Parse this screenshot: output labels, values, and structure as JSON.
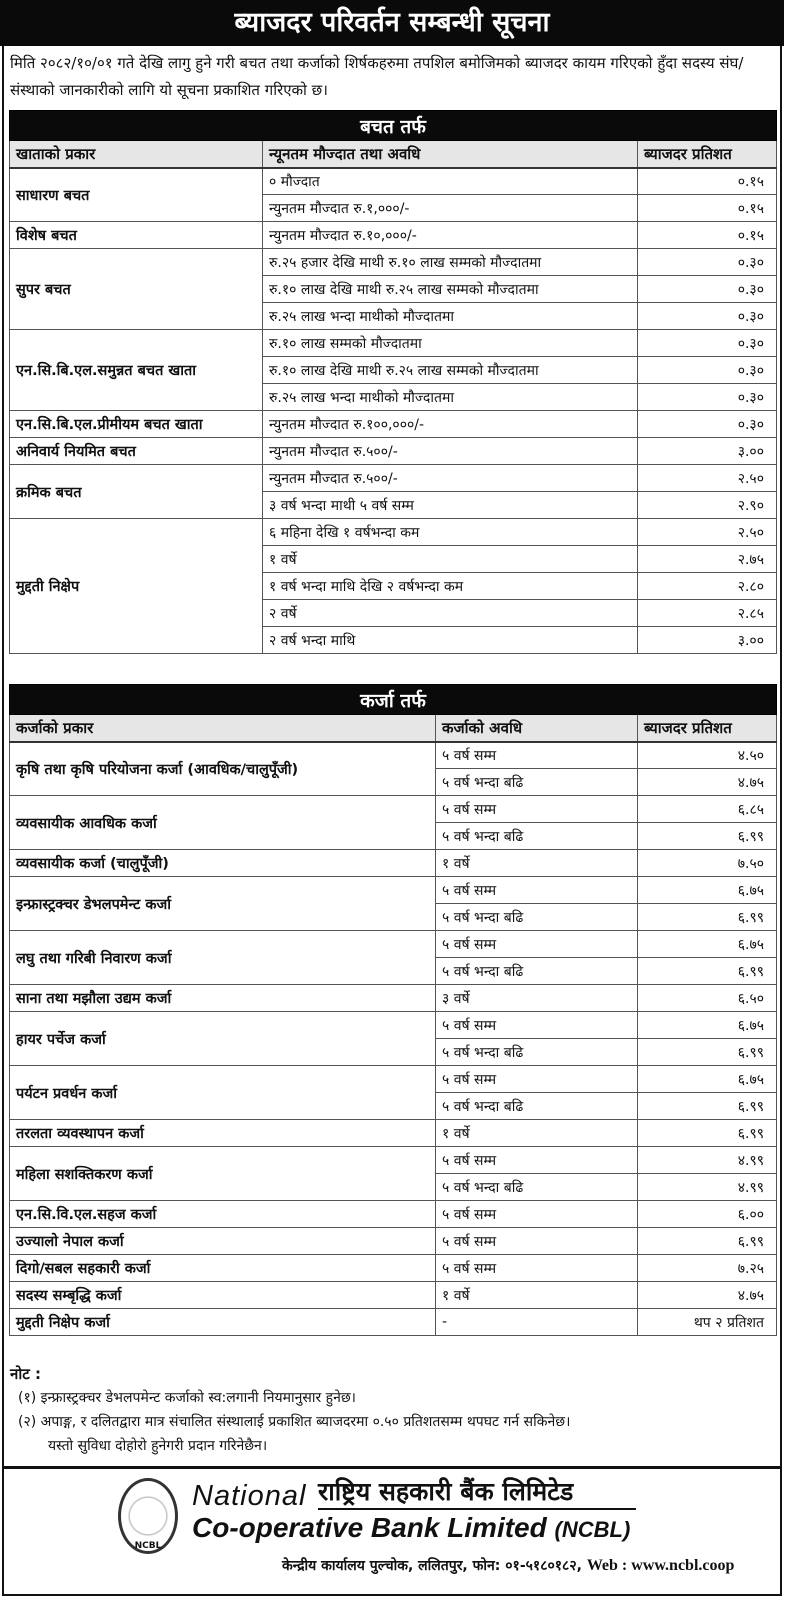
{
  "title": "ब्याजदर परिवर्तन सम्बन्धी सूचना",
  "intro": "मिति २०८२/१०/०१ गते देखि लागु हुने गरी बचत तथा कर्जाको शिर्षकहरुमा तपशिल बमोजिमको ब्याजदर कायम गरिएको हुँदा सदस्य संघ/संस्थाको जानकारीको लागि यो सूचना प्रकाशित गरिएको छ।",
  "savings": {
    "heading": "बचत तर्फ",
    "columns": [
      "खाताको प्रकार",
      "न्यूनतम मौज्दात तथा अवधि",
      "ब्याजदर प्रतिशत"
    ],
    "groups": [
      {
        "type": "साधारण बचत",
        "rows": [
          [
            "० मौज्दात",
            "०.१५"
          ],
          [
            "न्युनतम मौज्दात रु.१,०००/-",
            "०.१५"
          ]
        ]
      },
      {
        "type": "विशेष बचत",
        "rows": [
          [
            "न्युनतम मौज्दात रु.१०,०००/-",
            "०.१५"
          ]
        ]
      },
      {
        "type": "सुपर बचत",
        "rows": [
          [
            "रु.२५ हजार देखि माथी रु.१० लाख सम्मको मौज्दातमा",
            "०.३०"
          ],
          [
            "रु.१० लाख देखि माथी रु.२५ लाख सम्मको मौज्दातमा",
            "०.३०"
          ],
          [
            "रु.२५ लाख भन्दा माथीको मौज्दातमा",
            "०.३०"
          ]
        ]
      },
      {
        "type": "एन.सि.बि.एल.समुन्नत बचत खाता",
        "rows": [
          [
            "रु.१० लाख सम्मको मौज्दातमा",
            "०.३०"
          ],
          [
            "रु.१० लाख देखि माथी रु.२५ लाख सम्मको मौज्दातमा",
            "०.३०"
          ],
          [
            "रु.२५ लाख भन्दा माथीको मौज्दातमा",
            "०.३०"
          ]
        ]
      },
      {
        "type": "एन.सि.बि.एल.प्रीमीयम बचत खाता",
        "rows": [
          [
            "न्युनतम मौज्दात रु.१००,०००/-",
            "०.३०"
          ]
        ]
      },
      {
        "type": "अनिवार्य नियमित बचत",
        "rows": [
          [
            "न्युनतम मौज्दात रु.५००/-",
            "३.००"
          ]
        ]
      },
      {
        "type": "क्रमिक बचत",
        "rows": [
          [
            "न्युनतम मौज्दात रु.५००/-",
            "२.५०"
          ],
          [
            "३ वर्ष भन्दा माथी ५ वर्ष सम्म",
            "२.९०"
          ]
        ]
      },
      {
        "type": "मुद्दती  निक्षेप",
        "rows": [
          [
            "६ महिना देखि १ वर्षभन्दा कम",
            "२.५०"
          ],
          [
            "१ वर्षे",
            "२.७५"
          ],
          [
            "१ वर्ष भन्दा माथि देखि २ वर्षभन्दा कम",
            "२.८०"
          ],
          [
            "२ वर्षे",
            "२.८५"
          ],
          [
            "२ वर्ष भन्दा माथि",
            "३.००"
          ]
        ]
      }
    ]
  },
  "loans": {
    "heading": "कर्जा तर्फ",
    "columns": [
      "कर्जाको प्रकार",
      "कर्जाको अवधि",
      "ब्याजदर प्रतिशत"
    ],
    "groups": [
      {
        "type": "कृषि तथा कृषि परियोजना कर्जा  (आवधिक/चालुपूँजी)",
        "rows": [
          [
            "५ वर्ष सम्म",
            "४.५०"
          ],
          [
            "५ वर्ष भन्दा बढि",
            "४.७५"
          ]
        ]
      },
      {
        "type": "व्यवसायीक आवधिक कर्जा",
        "rows": [
          [
            "५ वर्ष सम्म",
            "६.८५"
          ],
          [
            "५ वर्ष भन्दा बढि",
            "६.९९"
          ]
        ]
      },
      {
        "type": "व्यवसायीक कर्जा (चालुपूँजी)",
        "rows": [
          [
            "१ वर्षे",
            "७.५०"
          ]
        ]
      },
      {
        "type": "इन्फ्रास्ट्रक्चर डेभलपमेन्ट कर्जा",
        "rows": [
          [
            "५ वर्ष सम्म",
            "६.७५"
          ],
          [
            "५ वर्ष भन्दा बढि",
            "६.९९"
          ]
        ]
      },
      {
        "type": "लघु तथा गरिबी निवारण कर्जा",
        "rows": [
          [
            "५ वर्ष सम्म",
            "६.७५"
          ],
          [
            "५ वर्ष भन्दा बढि",
            "६.९९"
          ]
        ]
      },
      {
        "type": "साना तथा मझौला उद्यम कर्जा",
        "rows": [
          [
            "३ वर्षे",
            "६.५०"
          ]
        ]
      },
      {
        "type": "हायर पर्चेज कर्जा",
        "rows": [
          [
            "५ वर्ष सम्म",
            "६.७५"
          ],
          [
            "५ वर्ष भन्दा बढि",
            "६.९९"
          ]
        ]
      },
      {
        "type": "पर्यटन प्रवर्धन कर्जा",
        "rows": [
          [
            "५ वर्ष सम्म",
            "६.७५"
          ],
          [
            "५ वर्ष भन्दा बढि",
            "६.९९"
          ]
        ]
      },
      {
        "type": "तरलता व्यवस्थापन कर्जा",
        "rows": [
          [
            "१ वर्षे",
            "६.९९"
          ]
        ]
      },
      {
        "type": "महिला सशक्तिकरण कर्जा",
        "rows": [
          [
            "५ वर्ष सम्म",
            "४.९९"
          ],
          [
            "५ वर्ष भन्दा बढि",
            "४.९९"
          ]
        ]
      },
      {
        "type": "एन.सि.वि.एल.सहज कर्जा",
        "rows": [
          [
            "५ वर्ष सम्म",
            "६.००"
          ]
        ]
      },
      {
        "type": "उज्यालो नेपाल कर्जा",
        "rows": [
          [
            "५ वर्ष सम्म",
            "६.९९"
          ]
        ]
      },
      {
        "type": "दिगो/सबल सहकारी कर्जा",
        "rows": [
          [
            "५ वर्ष सम्म",
            "७.२५"
          ]
        ]
      },
      {
        "type": "सदस्य सम्बृद्धि कर्जा",
        "rows": [
          [
            "१ वर्षे",
            "४.७५"
          ]
        ]
      },
      {
        "type": "मुद्दती निक्षेप कर्जा",
        "rows": [
          [
            "-",
            "थप २ प्रतिशत"
          ]
        ]
      }
    ]
  },
  "notes": {
    "heading": "नोट :",
    "items": [
      "(१)  इन्फ्रास्ट्रक्चर डेभलपमेन्ट कर्जाको स्व:लगानी नियमानुसार हुनेछ।",
      "(२)  अपाङ्ग, र दलितद्वारा मात्र संचालित संस्थालाई प्रकाशित ब्याजदरमा ०.५० प्रतिशतसम्म थपघट गर्न सकिनेछ।"
    ],
    "continuation": "यस्तो सुविधा दोहोरो हुनेगरी प्रदान गरिनेछैन।"
  },
  "footer": {
    "seal_text": "NCBL",
    "name_en_line1": "National",
    "name_np": "राष्ट्रिय सहकारी बैंक लिमिटेड",
    "name_en_line2": "Co-operative Bank Limited",
    "abbr": "(NCBL)",
    "address": "केन्द्रीय कार्यालय पुल्चोक, ललितपुर, फोन: ०१-५१८०१८२,",
    "web": "Web : www.ncbl.coop"
  }
}
